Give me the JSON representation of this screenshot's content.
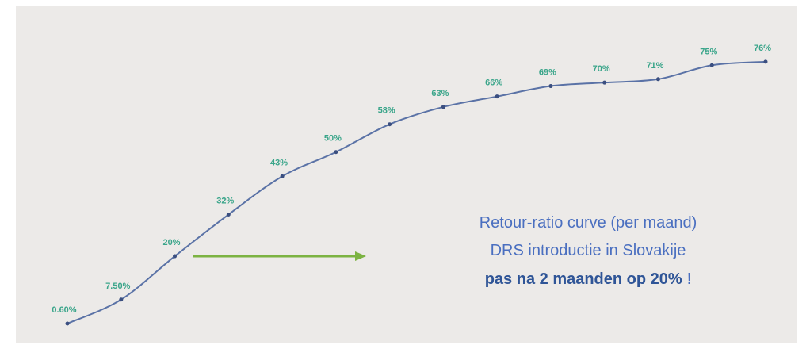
{
  "chart_data": {
    "type": "line",
    "values": [
      0.6,
      7.5,
      20,
      32,
      43,
      50,
      58,
      63,
      66,
      69,
      70,
      71,
      75,
      76
    ],
    "value_labels": [
      "0.60%",
      "7.50%",
      "20%",
      "32%",
      "43%",
      "50%",
      "58%",
      "63%",
      "66%",
      "69%",
      "70%",
      "71%",
      "75%",
      "76%"
    ],
    "ylim": [
      0,
      80
    ],
    "color": "#5a72a6",
    "label_color": "#3aa58a",
    "annotation": {
      "lines": [
        "Retour-ratio curve (per maand)",
        "DRS introductie in Slovakije"
      ],
      "bold": "pas na 2 maanden op 20%",
      "tail": "!"
    }
  }
}
